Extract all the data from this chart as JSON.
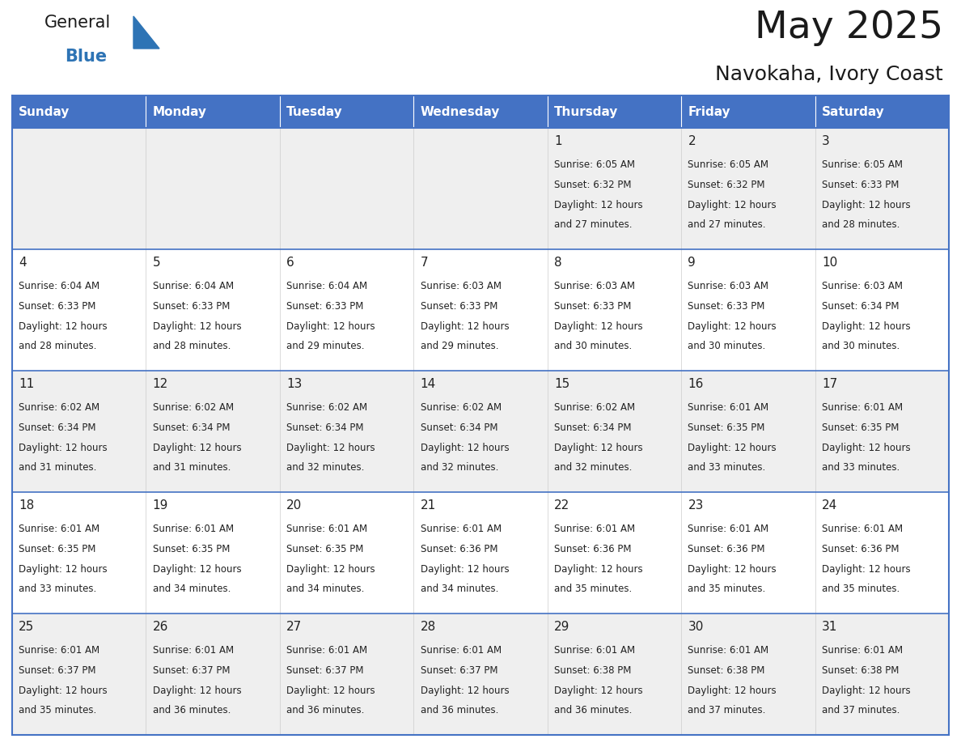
{
  "title": "May 2025",
  "subtitle": "Navokaha, Ivory Coast",
  "header_color": "#4472C4",
  "header_text_color": "#FFFFFF",
  "day_names": [
    "Sunday",
    "Monday",
    "Tuesday",
    "Wednesday",
    "Thursday",
    "Friday",
    "Saturday"
  ],
  "bg_color": "#FFFFFF",
  "cell_bg_even": "#EFEFEF",
  "cell_bg_odd": "#FFFFFF",
  "cell_border_color": "#4472C4",
  "day_number_color": "#222222",
  "text_color": "#222222",
  "logo_general_color": "#1a1a1a",
  "logo_blue_color": "#2E74B5",
  "logo_triangle_color": "#2E74B5",
  "title_color": "#1a1a1a",
  "subtitle_color": "#1a1a1a",
  "calendar": [
    [
      null,
      null,
      null,
      null,
      {
        "day": 1,
        "sunrise": "6:05 AM",
        "sunset": "6:32 PM",
        "daylight": "12 hours and 27 minutes"
      },
      {
        "day": 2,
        "sunrise": "6:05 AM",
        "sunset": "6:32 PM",
        "daylight": "12 hours and 27 minutes"
      },
      {
        "day": 3,
        "sunrise": "6:05 AM",
        "sunset": "6:33 PM",
        "daylight": "12 hours and 28 minutes"
      }
    ],
    [
      {
        "day": 4,
        "sunrise": "6:04 AM",
        "sunset": "6:33 PM",
        "daylight": "12 hours and 28 minutes"
      },
      {
        "day": 5,
        "sunrise": "6:04 AM",
        "sunset": "6:33 PM",
        "daylight": "12 hours and 28 minutes"
      },
      {
        "day": 6,
        "sunrise": "6:04 AM",
        "sunset": "6:33 PM",
        "daylight": "12 hours and 29 minutes"
      },
      {
        "day": 7,
        "sunrise": "6:03 AM",
        "sunset": "6:33 PM",
        "daylight": "12 hours and 29 minutes"
      },
      {
        "day": 8,
        "sunrise": "6:03 AM",
        "sunset": "6:33 PM",
        "daylight": "12 hours and 30 minutes"
      },
      {
        "day": 9,
        "sunrise": "6:03 AM",
        "sunset": "6:33 PM",
        "daylight": "12 hours and 30 minutes"
      },
      {
        "day": 10,
        "sunrise": "6:03 AM",
        "sunset": "6:34 PM",
        "daylight": "12 hours and 30 minutes"
      }
    ],
    [
      {
        "day": 11,
        "sunrise": "6:02 AM",
        "sunset": "6:34 PM",
        "daylight": "12 hours and 31 minutes"
      },
      {
        "day": 12,
        "sunrise": "6:02 AM",
        "sunset": "6:34 PM",
        "daylight": "12 hours and 31 minutes"
      },
      {
        "day": 13,
        "sunrise": "6:02 AM",
        "sunset": "6:34 PM",
        "daylight": "12 hours and 32 minutes"
      },
      {
        "day": 14,
        "sunrise": "6:02 AM",
        "sunset": "6:34 PM",
        "daylight": "12 hours and 32 minutes"
      },
      {
        "day": 15,
        "sunrise": "6:02 AM",
        "sunset": "6:34 PM",
        "daylight": "12 hours and 32 minutes"
      },
      {
        "day": 16,
        "sunrise": "6:01 AM",
        "sunset": "6:35 PM",
        "daylight": "12 hours and 33 minutes"
      },
      {
        "day": 17,
        "sunrise": "6:01 AM",
        "sunset": "6:35 PM",
        "daylight": "12 hours and 33 minutes"
      }
    ],
    [
      {
        "day": 18,
        "sunrise": "6:01 AM",
        "sunset": "6:35 PM",
        "daylight": "12 hours and 33 minutes"
      },
      {
        "day": 19,
        "sunrise": "6:01 AM",
        "sunset": "6:35 PM",
        "daylight": "12 hours and 34 minutes"
      },
      {
        "day": 20,
        "sunrise": "6:01 AM",
        "sunset": "6:35 PM",
        "daylight": "12 hours and 34 minutes"
      },
      {
        "day": 21,
        "sunrise": "6:01 AM",
        "sunset": "6:36 PM",
        "daylight": "12 hours and 34 minutes"
      },
      {
        "day": 22,
        "sunrise": "6:01 AM",
        "sunset": "6:36 PM",
        "daylight": "12 hours and 35 minutes"
      },
      {
        "day": 23,
        "sunrise": "6:01 AM",
        "sunset": "6:36 PM",
        "daylight": "12 hours and 35 minutes"
      },
      {
        "day": 24,
        "sunrise": "6:01 AM",
        "sunset": "6:36 PM",
        "daylight": "12 hours and 35 minutes"
      }
    ],
    [
      {
        "day": 25,
        "sunrise": "6:01 AM",
        "sunset": "6:37 PM",
        "daylight": "12 hours and 35 minutes"
      },
      {
        "day": 26,
        "sunrise": "6:01 AM",
        "sunset": "6:37 PM",
        "daylight": "12 hours and 36 minutes"
      },
      {
        "day": 27,
        "sunrise": "6:01 AM",
        "sunset": "6:37 PM",
        "daylight": "12 hours and 36 minutes"
      },
      {
        "day": 28,
        "sunrise": "6:01 AM",
        "sunset": "6:37 PM",
        "daylight": "12 hours and 36 minutes"
      },
      {
        "day": 29,
        "sunrise": "6:01 AM",
        "sunset": "6:38 PM",
        "daylight": "12 hours and 36 minutes"
      },
      {
        "day": 30,
        "sunrise": "6:01 AM",
        "sunset": "6:38 PM",
        "daylight": "12 hours and 37 minutes"
      },
      {
        "day": 31,
        "sunrise": "6:01 AM",
        "sunset": "6:38 PM",
        "daylight": "12 hours and 37 minutes"
      }
    ]
  ]
}
